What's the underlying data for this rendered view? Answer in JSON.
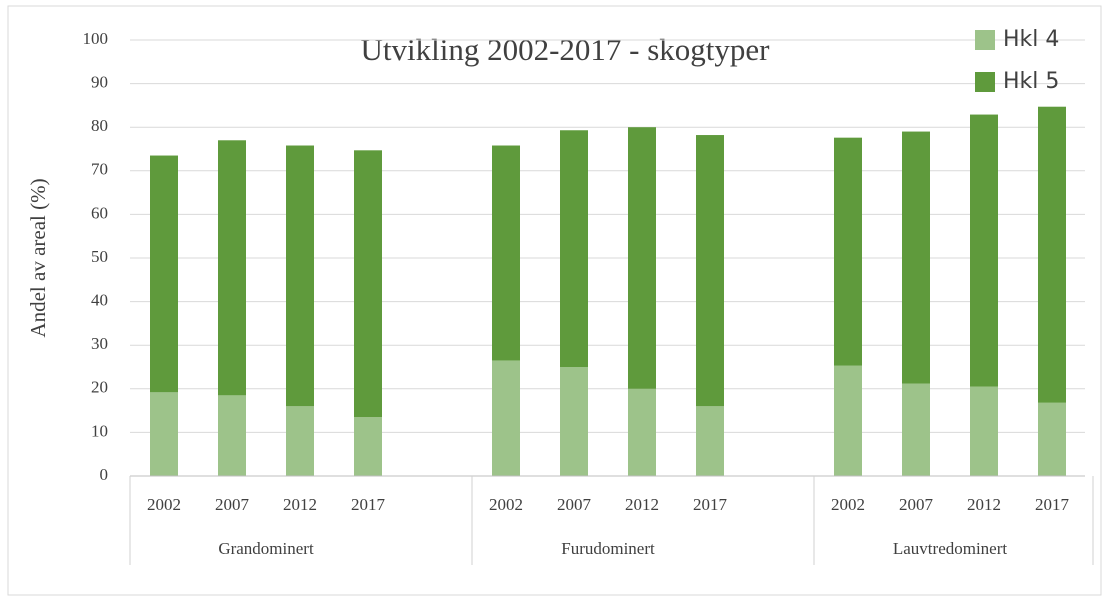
{
  "chart_data": {
    "type": "bar",
    "stacked": true,
    "title": "Utvikling 2002-2017 - skogtyper",
    "y_label": "Andel av areal (%)",
    "groups": [
      "Grandominert",
      "Furudominert",
      "Lauvtredominert"
    ],
    "categories": [
      "2002",
      "2007",
      "2012",
      "2017",
      "2002",
      "2007",
      "2012",
      "2017",
      "2002",
      "2007",
      "2012",
      "2017"
    ],
    "series": [
      {
        "name": "Hkl 4",
        "color": "#9dc38a",
        "values": [
          19.2,
          18.5,
          16,
          13.5,
          26.5,
          25,
          20,
          16,
          25.3,
          21.2,
          20.5,
          16.8
        ]
      },
      {
        "name": "Hkl 5",
        "color": "#5f9a3c",
        "values": [
          54.3,
          58.5,
          59.8,
          61.2,
          49.3,
          54.3,
          60,
          62.2,
          52.3,
          57.8,
          62.4,
          67.9
        ]
      }
    ],
    "ylim": [
      0,
      100
    ],
    "yticks": [
      0,
      10,
      20,
      30,
      40,
      50,
      60,
      70,
      80,
      90,
      100
    ],
    "grid": true,
    "legend": "top-right"
  }
}
